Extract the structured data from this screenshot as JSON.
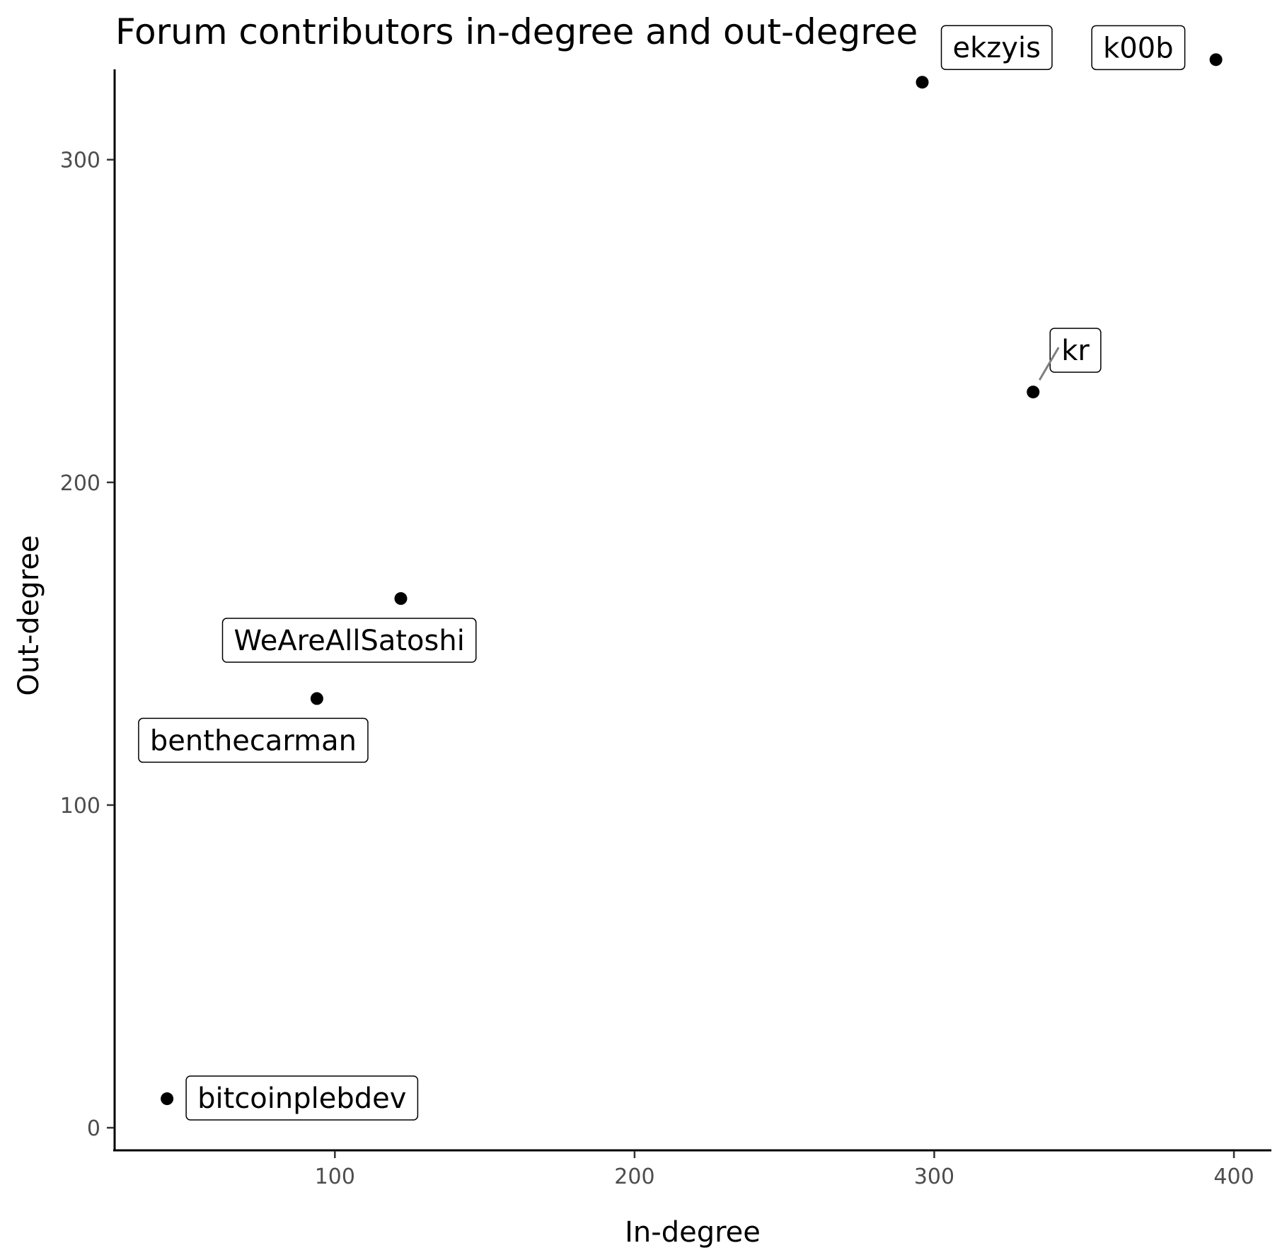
{
  "chart_data": {
    "type": "scatter",
    "title": "Forum contributors in-degree and out-degree",
    "xlabel": "In-degree",
    "ylabel": "Out-degree",
    "xlim": [
      26.5,
      412.5
    ],
    "ylim": [
      -7,
      328
    ],
    "xticks": [
      100,
      200,
      300,
      400
    ],
    "yticks": [
      0,
      100,
      200,
      300
    ],
    "grid": false,
    "legend": "none",
    "points": [
      {
        "label": "k00b",
        "x": 394,
        "y": 331,
        "label_side": "left"
      },
      {
        "label": "ekzyis",
        "x": 296,
        "y": 324,
        "label_side": "upper-right"
      },
      {
        "label": "kr",
        "x": 333,
        "y": 228,
        "label_side": "upper-right-leader"
      },
      {
        "label": "WeAreAllSatoshi",
        "x": 122,
        "y": 164,
        "label_side": "below-left"
      },
      {
        "label": "benthecarman",
        "x": 94,
        "y": 133,
        "label_side": "below-left"
      },
      {
        "label": "bitcoinplebdev",
        "x": 44,
        "y": 9,
        "label_side": "right"
      }
    ]
  }
}
